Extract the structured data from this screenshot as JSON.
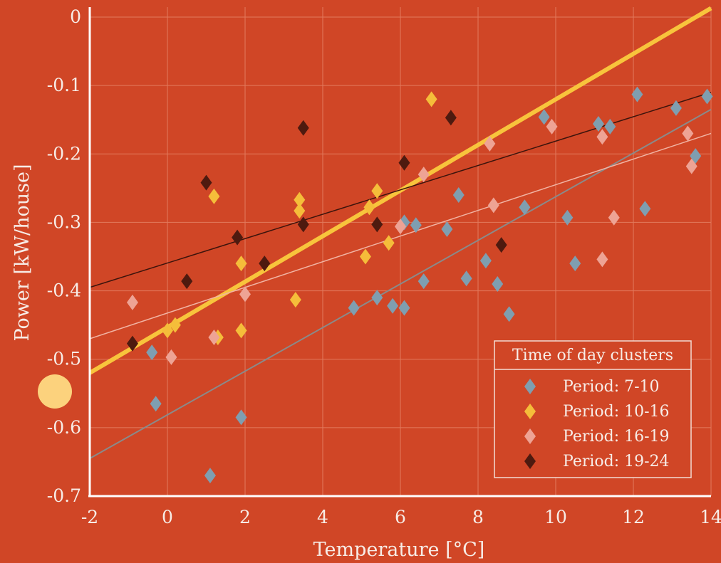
{
  "chart_data": {
    "type": "scatter",
    "xlabel": "Temperature [°C]",
    "ylabel": "Power [kW/house]",
    "xlim": [
      -2,
      14
    ],
    "ylim": [
      -0.7,
      0
    ],
    "xticks": [
      -2,
      0,
      2,
      4,
      6,
      8,
      10,
      12,
      14
    ],
    "yticks": [
      0,
      -0.1,
      -0.2,
      -0.3,
      -0.4,
      -0.5,
      -0.6,
      -0.7
    ],
    "ytick_labels": [
      "0",
      "-0.1",
      "-0.2",
      "-0.3",
      "-0.4",
      "-0.5",
      "-0.6",
      "-0.7"
    ],
    "grid": true,
    "legend": {
      "title": "Time of day clusters",
      "position": "bottom-right"
    },
    "series": [
      {
        "name": "Period: 7-10",
        "color": "#7f9eb0",
        "marker": "diamond",
        "points": [
          [
            -0.4,
            -0.49
          ],
          [
            -0.3,
            -0.565
          ],
          [
            1.1,
            -0.67
          ],
          [
            1.9,
            -0.585
          ],
          [
            4.8,
            -0.425
          ],
          [
            5.4,
            -0.41
          ],
          [
            5.8,
            -0.422
          ],
          [
            6.1,
            -0.3
          ],
          [
            6.1,
            -0.425
          ],
          [
            6.4,
            -0.304
          ],
          [
            6.6,
            -0.386
          ],
          [
            7.2,
            -0.31
          ],
          [
            7.5,
            -0.26
          ],
          [
            7.7,
            -0.382
          ],
          [
            8.2,
            -0.356
          ],
          [
            8.5,
            -0.39
          ],
          [
            8.8,
            -0.434
          ],
          [
            9.2,
            -0.278
          ],
          [
            9.7,
            -0.146
          ],
          [
            10.3,
            -0.293
          ],
          [
            10.5,
            -0.36
          ],
          [
            11.1,
            -0.156
          ],
          [
            11.4,
            -0.16
          ],
          [
            12.1,
            -0.113
          ],
          [
            12.3,
            -0.28
          ],
          [
            13.1,
            -0.133
          ],
          [
            13.6,
            -0.203
          ],
          [
            13.9,
            -0.116
          ]
        ],
        "fit": {
          "x": [
            -2,
            14
          ],
          "y": [
            -0.645,
            -0.135
          ]
        }
      },
      {
        "name": "Period: 10-16",
        "color": "#f5bd3a",
        "marker": "diamond",
        "points": [
          [
            0.0,
            -0.458
          ],
          [
            0.2,
            -0.45
          ],
          [
            1.2,
            -0.262
          ],
          [
            1.3,
            -0.468
          ],
          [
            1.9,
            -0.36
          ],
          [
            1.9,
            -0.458
          ],
          [
            3.3,
            -0.413
          ],
          [
            3.4,
            -0.267
          ],
          [
            3.4,
            -0.283
          ],
          [
            5.1,
            -0.35
          ],
          [
            5.2,
            -0.278
          ],
          [
            5.4,
            -0.254
          ],
          [
            5.7,
            -0.33
          ],
          [
            6.8,
            -0.12
          ]
        ],
        "fit": {
          "x": [
            -2,
            14
          ],
          "y": [
            -0.52,
            0.013
          ]
        }
      },
      {
        "name": "Period: 16-19",
        "color": "#eea394",
        "marker": "diamond",
        "points": [
          [
            -0.9,
            -0.417
          ],
          [
            0.1,
            -0.497
          ],
          [
            1.2,
            -0.468
          ],
          [
            2.0,
            -0.405
          ],
          [
            6.0,
            -0.306
          ],
          [
            6.6,
            -0.23
          ],
          [
            8.3,
            -0.185
          ],
          [
            8.4,
            -0.275
          ],
          [
            9.9,
            -0.16
          ],
          [
            11.2,
            -0.175
          ],
          [
            11.2,
            -0.354
          ],
          [
            11.5,
            -0.293
          ],
          [
            13.4,
            -0.17
          ],
          [
            13.5,
            -0.218
          ]
        ],
        "fit": {
          "x": [
            -2,
            14
          ],
          "y": [
            -0.47,
            -0.17
          ]
        }
      },
      {
        "name": "Period: 19-24",
        "color": "#4e1a0f",
        "marker": "diamond",
        "points": [
          [
            -0.9,
            -0.477
          ],
          [
            0.5,
            -0.386
          ],
          [
            1.0,
            -0.242
          ],
          [
            1.8,
            -0.322
          ],
          [
            2.5,
            -0.36
          ],
          [
            3.5,
            -0.162
          ],
          [
            3.5,
            -0.303
          ],
          [
            5.4,
            -0.303
          ],
          [
            6.1,
            -0.213
          ],
          [
            7.3,
            -0.147
          ],
          [
            8.6,
            -0.333
          ]
        ],
        "fit": {
          "x": [
            -2,
            14
          ],
          "y": [
            -0.395,
            -0.11
          ]
        }
      }
    ]
  }
}
